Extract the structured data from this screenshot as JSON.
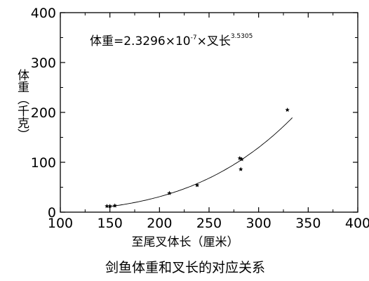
{
  "chart_data": {
    "type": "scatter",
    "title": "剑鱼体重和叉长的对应关系",
    "xlabel": "至尾叉体长（厘米）",
    "ylabel": "体重（千克）",
    "xlim": [
      100,
      400
    ],
    "ylim": [
      0,
      400
    ],
    "xticks": [
      100,
      150,
      200,
      250,
      300,
      350,
      400
    ],
    "yticks": [
      0,
      100,
      200,
      300,
      400
    ],
    "grid": false,
    "equation": {
      "prefix": "体重=2.3296×10",
      "exp1": "-7",
      "middle": "×叉长",
      "exp2": "3.5305"
    },
    "points": [
      {
        "x": 147,
        "y": 12
      },
      {
        "x": 150,
        "y": 12
      },
      {
        "x": 155,
        "y": 13
      },
      {
        "x": 210,
        "y": 38
      },
      {
        "x": 238,
        "y": 54
      },
      {
        "x": 281,
        "y": 108
      },
      {
        "x": 283,
        "y": 106
      },
      {
        "x": 282,
        "y": 86
      },
      {
        "x": 329,
        "y": 205
      }
    ],
    "fit_curve": {
      "coefficient": 2.3296e-07,
      "exponent": 3.5305,
      "x_range": [
        150,
        335
      ]
    }
  }
}
